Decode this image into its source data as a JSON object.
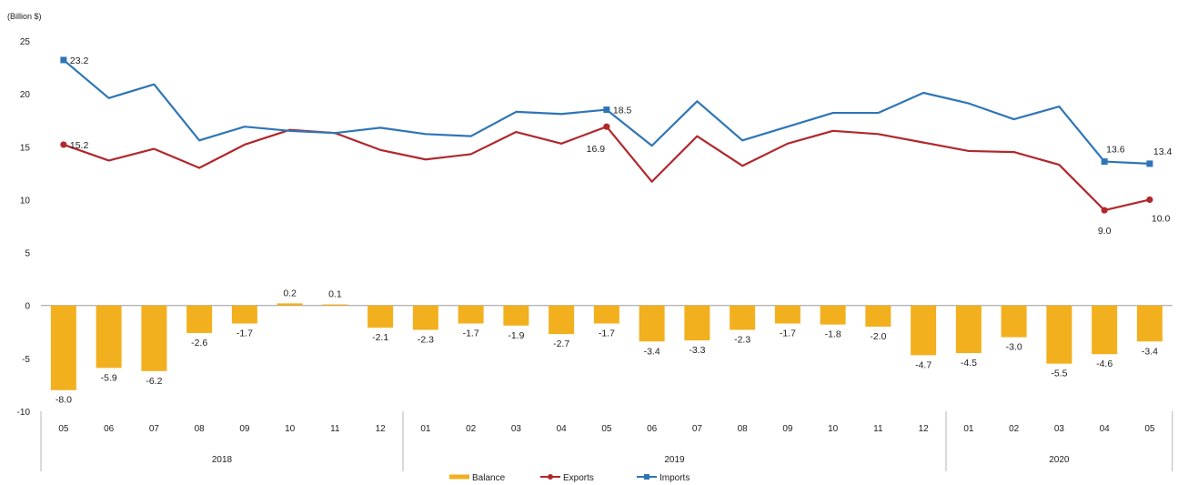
{
  "chart_data": {
    "type": "bar+line",
    "ylabel": "(Billion $)",
    "ylim": [
      -10,
      25
    ],
    "yticks": [
      "25",
      "20",
      "15",
      "10",
      "5",
      "0",
      "-5",
      "-10"
    ],
    "categories": [
      "05",
      "06",
      "07",
      "08",
      "09",
      "10",
      "11",
      "12",
      "01",
      "02",
      "03",
      "04",
      "05",
      "06",
      "07",
      "08",
      "09",
      "10",
      "11",
      "12",
      "01",
      "02",
      "03",
      "04",
      "05"
    ],
    "years": [
      {
        "label": "2018",
        "start": 0,
        "end": 7
      },
      {
        "label": "2019",
        "start": 8,
        "end": 19
      },
      {
        "label": "2020",
        "start": 20,
        "end": 24
      }
    ],
    "series": [
      {
        "name": "Balance",
        "type": "bar",
        "color": "#f2b01e",
        "values": [
          -8.0,
          -5.9,
          -6.2,
          -2.6,
          -1.7,
          0.2,
          0.1,
          -2.1,
          -2.3,
          -1.7,
          -1.9,
          -2.7,
          -1.7,
          -3.4,
          -3.3,
          -2.3,
          -1.7,
          -1.8,
          -2.0,
          -4.7,
          -4.5,
          -3.0,
          -5.5,
          -4.6,
          -3.4
        ],
        "labels": [
          "-8.0",
          "-5.9",
          "-6.2",
          "-2.6",
          "-1.7",
          "0.2",
          "0.1",
          "-2.1",
          "-2.3",
          "-1.7",
          "-1.9",
          "-2.7",
          "-1.7",
          "-3.4",
          "-3.3",
          "-2.3",
          "-1.7",
          "-1.8",
          "-2.0",
          "-4.7",
          "-4.5",
          "-3.0",
          "-5.5",
          "-4.6",
          "-3.4"
        ]
      },
      {
        "name": "Exports",
        "type": "line",
        "color": "#b0282c",
        "values": [
          15.2,
          13.7,
          14.8,
          13.0,
          15.2,
          16.6,
          16.3,
          14.7,
          13.8,
          14.3,
          16.4,
          15.3,
          16.9,
          11.7,
          16.0,
          13.2,
          15.3,
          16.5,
          16.2,
          15.4,
          14.6,
          14.5,
          13.3,
          9.0,
          10.0
        ],
        "point_labels": [
          {
            "index": 0,
            "text": "15.2"
          },
          {
            "index": 12,
            "text": "16.9"
          },
          {
            "index": 23,
            "text": "9.0"
          },
          {
            "index": 24,
            "text": "10.0"
          }
        ]
      },
      {
        "name": "Imports",
        "type": "line",
        "color": "#2e75b6",
        "values": [
          23.2,
          19.6,
          20.9,
          15.6,
          16.9,
          16.5,
          16.3,
          16.8,
          16.2,
          16.0,
          18.3,
          18.1,
          18.5,
          15.1,
          19.3,
          15.6,
          16.9,
          18.2,
          18.2,
          20.1,
          19.1,
          17.6,
          18.8,
          13.6,
          13.4
        ],
        "point_labels": [
          {
            "index": 0,
            "text": "23.2"
          },
          {
            "index": 12,
            "text": "18.5"
          },
          {
            "index": 23,
            "text": "13.6"
          },
          {
            "index": 24,
            "text": "13.4"
          }
        ]
      }
    ],
    "legend": {
      "position": "bottom",
      "items": [
        "Balance",
        "Exports",
        "Imports"
      ]
    },
    "grid": false
  }
}
